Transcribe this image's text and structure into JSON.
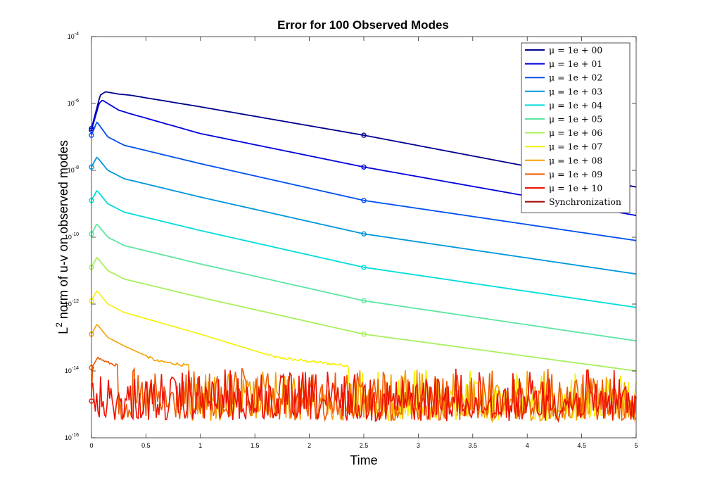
{
  "chart_data": {
    "type": "line",
    "title": "Error for 100 Observed Modes",
    "xlabel": "Time",
    "ylabel_base": "L",
    "ylabel_sup": "2",
    "ylabel_rest": " norm of u-v on observed modes",
    "xlim": [
      0,
      5
    ],
    "ylim_exp": [
      -16,
      -4
    ],
    "yscale": "log",
    "x_ticks": [
      "0",
      "0.5",
      "1",
      "1.5",
      "2",
      "2.5",
      "3",
      "3.5",
      "4",
      "4.5",
      "5"
    ],
    "y_ticks": [
      {
        "base": "10",
        "exp": "-4"
      },
      {
        "base": "10",
        "exp": "-6"
      },
      {
        "base": "10",
        "exp": "-8"
      },
      {
        "base": "10",
        "exp": "-10"
      },
      {
        "base": "10",
        "exp": "-12"
      },
      {
        "base": "10",
        "exp": "-14"
      },
      {
        "base": "10",
        "exp": "-16"
      }
    ],
    "noise_floor_exp": [
      -15.5,
      -13.9
    ],
    "legend_position": "top-right",
    "series": [
      {
        "name": "μ = 1e + 00",
        "color": "#00008f",
        "log10_points": [
          [
            0,
            -6.75
          ],
          [
            0.08,
            -5.75
          ],
          [
            0.13,
            -5.65
          ],
          [
            0.25,
            -5.72
          ],
          [
            0.35,
            -5.75
          ],
          [
            1,
            -6.1
          ],
          [
            2.5,
            -6.95
          ],
          [
            5,
            -8.5
          ]
        ]
      },
      {
        "name": "μ = 1e + 01",
        "color": "#0000dd",
        "log10_points": [
          [
            0,
            -6.8
          ],
          [
            0.07,
            -6.0
          ],
          [
            0.1,
            -5.9
          ],
          [
            0.25,
            -6.2
          ],
          [
            0.35,
            -6.3
          ],
          [
            1,
            -6.9
          ],
          [
            2.5,
            -7.9
          ],
          [
            5,
            -9.35
          ]
        ]
      },
      {
        "name": "μ = 1e + 02",
        "color": "#0050ee",
        "log10_points": [
          [
            0,
            -6.95
          ],
          [
            0.05,
            -6.55
          ],
          [
            0.15,
            -7.0
          ],
          [
            0.3,
            -7.25
          ],
          [
            1,
            -7.8
          ],
          [
            2.5,
            -8.9
          ],
          [
            5,
            -10.1
          ]
        ]
      },
      {
        "name": "μ = 1e + 03",
        "color": "#0096dd",
        "log10_points": [
          [
            0,
            -7.9
          ],
          [
            0.05,
            -7.6
          ],
          [
            0.15,
            -8.0
          ],
          [
            0.3,
            -8.25
          ],
          [
            1,
            -8.8
          ],
          [
            2.5,
            -9.9
          ],
          [
            5,
            -11.1
          ]
        ]
      },
      {
        "name": "μ = 1e + 04",
        "color": "#00dcdc",
        "log10_points": [
          [
            0,
            -8.9
          ],
          [
            0.05,
            -8.6
          ],
          [
            0.15,
            -9.0
          ],
          [
            0.3,
            -9.25
          ],
          [
            1,
            -9.8
          ],
          [
            2.5,
            -10.9
          ],
          [
            5,
            -12.1
          ]
        ]
      },
      {
        "name": "μ = 1e + 05",
        "color": "#5ce6a0",
        "log10_points": [
          [
            0,
            -9.9
          ],
          [
            0.05,
            -9.6
          ],
          [
            0.15,
            -10.0
          ],
          [
            0.3,
            -10.25
          ],
          [
            1,
            -10.8
          ],
          [
            2.5,
            -11.9
          ],
          [
            5,
            -13.1
          ]
        ]
      },
      {
        "name": "μ = 1e + 06",
        "color": "#a8f05c",
        "log10_points": [
          [
            0,
            -10.9
          ],
          [
            0.05,
            -10.6
          ],
          [
            0.15,
            -11.0
          ],
          [
            0.3,
            -11.25
          ],
          [
            1,
            -11.8
          ],
          [
            2.5,
            -12.9
          ],
          [
            5,
            -14.0
          ]
        ]
      },
      {
        "name": "μ = 1e + 07",
        "color": "#f5f000",
        "log10_points": [
          [
            0,
            -11.9
          ],
          [
            0.05,
            -11.6
          ],
          [
            0.15,
            -12.0
          ],
          [
            0.3,
            -12.25
          ],
          [
            1,
            -12.9
          ],
          [
            1.7,
            -13.6
          ],
          [
            2.5,
            -13.9
          ],
          [
            5,
            -13.95
          ]
        ]
      },
      {
        "name": "μ = 1e + 08",
        "color": "#f5a000",
        "log10_points": [
          [
            0,
            -12.9
          ],
          [
            0.05,
            -12.6
          ],
          [
            0.15,
            -13.0
          ],
          [
            0.3,
            -13.25
          ],
          [
            0.6,
            -13.7
          ],
          [
            1,
            -13.9
          ],
          [
            5,
            -13.95
          ]
        ]
      },
      {
        "name": "μ = 1e + 09",
        "color": "#f05a00",
        "log10_points": [
          [
            0,
            -13.9
          ],
          [
            0.05,
            -13.6
          ],
          [
            0.15,
            -13.75
          ],
          [
            0.3,
            -13.9
          ],
          [
            5,
            -13.95
          ]
        ]
      },
      {
        "name": "μ = 1e + 10",
        "color": "#ee1000",
        "log10_points": [
          [
            0,
            -14.9
          ],
          [
            5,
            -14.9
          ]
        ]
      },
      {
        "name": "Synchronization",
        "color": "#a00000",
        "log10_points": []
      }
    ]
  }
}
